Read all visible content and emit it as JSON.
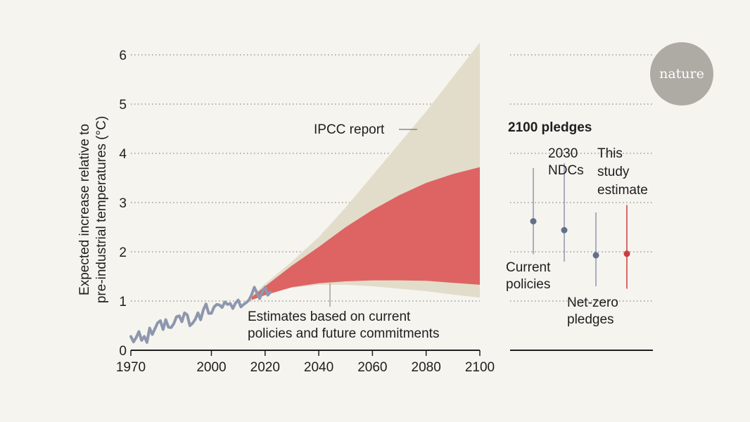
{
  "chart_data": {
    "type": "area",
    "ylabel_line1": "Expected increase relative to",
    "ylabel_line2": "pre-industrial temperatures (°C)",
    "xlim": [
      1970,
      2100
    ],
    "ylim": [
      0,
      6
    ],
    "x_ticks": [
      "1970",
      "2000",
      "2020",
      "2040",
      "2060",
      "2080",
      "2100"
    ],
    "y_ticks": [
      "0",
      "1",
      "2",
      "3",
      "4",
      "5",
      "6"
    ],
    "annotations": {
      "ipcc": "IPCC report",
      "estimates_line1": "Estimates based on current",
      "estimates_line2": "policies and future commitments"
    },
    "series": [
      {
        "name": "Observed temperature",
        "x": [
          1970,
          1971,
          1972,
          1973,
          1974,
          1975,
          1976,
          1977,
          1978,
          1979,
          1980,
          1981,
          1982,
          1983,
          1984,
          1985,
          1986,
          1987,
          1988,
          1989,
          1990,
          1991,
          1992,
          1993,
          1994,
          1995,
          1996,
          1997,
          1998,
          1999,
          2000,
          2001,
          2002,
          2003,
          2004,
          2005,
          2006,
          2007,
          2008,
          2009,
          2010,
          2011,
          2012,
          2013,
          2014,
          2015,
          2016,
          2017,
          2018,
          2019,
          2020,
          2021,
          2022
        ],
        "values": [
          0.28,
          0.17,
          0.26,
          0.38,
          0.2,
          0.28,
          0.16,
          0.45,
          0.32,
          0.44,
          0.56,
          0.6,
          0.42,
          0.62,
          0.47,
          0.46,
          0.54,
          0.68,
          0.7,
          0.58,
          0.76,
          0.72,
          0.5,
          0.55,
          0.63,
          0.76,
          0.62,
          0.82,
          0.94,
          0.75,
          0.75,
          0.88,
          0.93,
          0.92,
          0.87,
          0.98,
          0.93,
          0.95,
          0.85,
          0.96,
          1.02,
          0.88,
          0.93,
          0.97,
          1.02,
          1.13,
          1.28,
          1.16,
          1.05,
          1.2,
          1.28,
          1.12,
          1.18
        ]
      },
      {
        "name": "IPCC report range",
        "x": [
          2015,
          2020,
          2030,
          2040,
          2050,
          2060,
          2070,
          2080,
          2090,
          2100
        ],
        "lower": [
          1.05,
          1.15,
          1.27,
          1.33,
          1.33,
          1.3,
          1.25,
          1.2,
          1.13,
          1.07
        ],
        "upper": [
          1.1,
          1.35,
          1.8,
          2.3,
          2.9,
          3.55,
          4.2,
          4.85,
          5.55,
          6.25
        ]
      },
      {
        "name": "Estimates based on current policies and future commitments",
        "x": [
          2015,
          2020,
          2030,
          2040,
          2050,
          2060,
          2070,
          2080,
          2090,
          2100
        ],
        "lower": [
          1.02,
          1.12,
          1.28,
          1.36,
          1.4,
          1.42,
          1.42,
          1.41,
          1.37,
          1.33
        ],
        "upper": [
          1.08,
          1.3,
          1.72,
          2.1,
          2.5,
          2.85,
          3.15,
          3.4,
          3.58,
          3.72
        ]
      }
    ],
    "pledges": {
      "title": "2100 pledges",
      "items": [
        {
          "name": "Current policies",
          "label_line1": "Current",
          "label_line2": "policies",
          "value": 2.62,
          "low": 1.95,
          "high": 3.7,
          "color": "#64708a"
        },
        {
          "name": "2030 NDCs",
          "label_line1": "2030",
          "label_line2": "NDCs",
          "value": 2.44,
          "low": 1.8,
          "high": 3.8,
          "color": "#64708a"
        },
        {
          "name": "Net-zero pledges",
          "label_line1": "Net-zero",
          "label_line2": "pledges",
          "value": 1.93,
          "low": 1.3,
          "high": 2.8,
          "color": "#64708a"
        },
        {
          "name": "This study estimate",
          "label_line1": "This",
          "label_line2": "study",
          "label_line3": "estimate",
          "value": 1.96,
          "low": 1.25,
          "high": 2.95,
          "color": "#cd3c3c"
        }
      ]
    }
  },
  "logo": {
    "text": "nature"
  },
  "colors": {
    "background": "#f6f4ef",
    "ipcc_band": "#e2ddca",
    "estimate_band": "#de6464",
    "observed_line": "#8d97ad",
    "logo_circle": "#aeaaa4"
  }
}
